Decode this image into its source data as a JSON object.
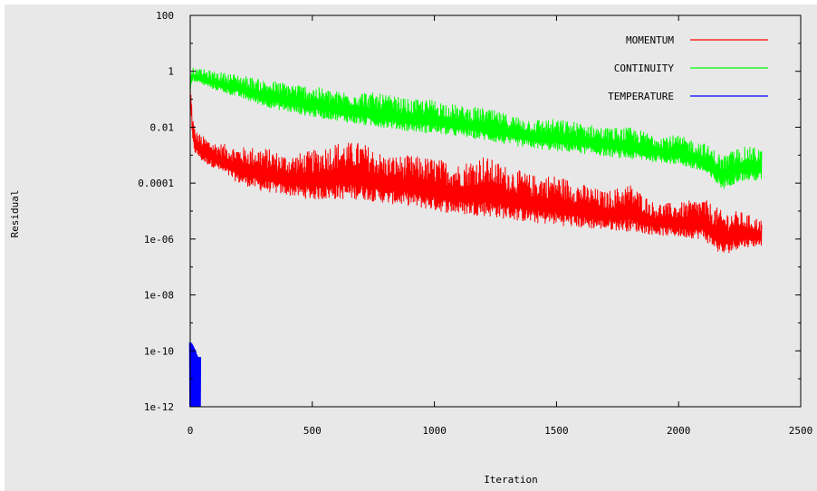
{
  "chart_data": {
    "type": "line",
    "title": "",
    "xlabel": "Iteration",
    "ylabel": "Residual",
    "xlim": [
      0,
      2500
    ],
    "ylim": [
      1e-12,
      100
    ],
    "y_scale": "log",
    "grid": false,
    "legend_position": "top-right",
    "x_ticks": [
      0,
      500,
      1000,
      1500,
      2000,
      2500
    ],
    "x_tick_labels": [
      "0",
      "500",
      "1000",
      "1500",
      "2000",
      "2500"
    ],
    "y_ticks": [
      1e-12,
      1e-10,
      1e-08,
      1e-06,
      0.0001,
      0.01,
      1,
      100
    ],
    "y_tick_labels": [
      "1e-12",
      "1e-10",
      "1e-08",
      "1e-06",
      "0.0001",
      "0.01",
      "1",
      "100"
    ],
    "series": [
      {
        "name": "MOMENTUM",
        "color": "#ff0000",
        "x": [
          0,
          10,
          20,
          50,
          100,
          200,
          300,
          400,
          500,
          600,
          700,
          800,
          900,
          1000,
          1100,
          1200,
          1300,
          1400,
          1500,
          1600,
          1700,
          1800,
          1900,
          2000,
          2100,
          2180,
          2250,
          2340
        ],
        "upper": [
          0.5,
          0.03,
          0.008,
          0.005,
          0.003,
          0.002,
          0.002,
          0.001,
          0.0015,
          0.003,
          0.003,
          0.001,
          0.001,
          0.0008,
          0.0005,
          0.001,
          0.0004,
          0.0002,
          0.0002,
          0.0001,
          5e-05,
          0.0001,
          2e-05,
          2e-05,
          3e-05,
          1e-05,
          1e-05,
          5e-06
        ],
        "lower": [
          0.05,
          0.002,
          0.001,
          0.0005,
          0.0003,
          8e-05,
          4e-05,
          3e-05,
          2e-05,
          2e-05,
          2e-05,
          1.5e-05,
          1.2e-05,
          8e-06,
          6e-06,
          5e-06,
          4e-06,
          3e-06,
          2.5e-06,
          2e-06,
          1.8e-06,
          1.5e-06,
          1.2e-06,
          1e-06,
          8e-07,
          2e-07,
          4e-07,
          5e-07
        ]
      },
      {
        "name": "CONTINUITY",
        "color": "#00ff00",
        "x": [
          0,
          10,
          20,
          50,
          100,
          200,
          300,
          400,
          500,
          600,
          700,
          800,
          900,
          1000,
          1100,
          1200,
          1300,
          1400,
          1500,
          1600,
          1700,
          1800,
          1900,
          2000,
          2100,
          2180,
          2250,
          2340
        ],
        "upper": [
          1.0,
          1.5,
          1.2,
          1.2,
          1.0,
          0.8,
          0.5,
          0.4,
          0.3,
          0.2,
          0.2,
          0.15,
          0.1,
          0.1,
          0.06,
          0.05,
          0.03,
          0.02,
          0.02,
          0.015,
          0.01,
          0.01,
          0.006,
          0.005,
          0.003,
          0.001,
          0.002,
          0.002
        ],
        "lower": [
          0.15,
          0.4,
          0.4,
          0.3,
          0.2,
          0.1,
          0.05,
          0.03,
          0.02,
          0.015,
          0.01,
          0.008,
          0.006,
          0.005,
          0.004,
          0.003,
          0.002,
          0.0015,
          0.0012,
          0.001,
          0.0008,
          0.0006,
          0.0005,
          0.0004,
          0.0002,
          5e-05,
          0.0001,
          0.0001
        ]
      },
      {
        "name": "TEMPERATURE",
        "color": "#0000ff",
        "x": [
          0,
          5,
          10,
          15,
          20,
          25,
          30,
          35,
          40
        ],
        "upper": [
          2e-10,
          1.8e-10,
          1.5e-10,
          1.2e-10,
          1e-10,
          7e-11,
          6e-11,
          6e-11,
          6e-11
        ],
        "lower": [
          1e-12,
          1e-12,
          1e-12,
          1e-12,
          1e-12,
          1e-12,
          1e-12,
          1e-12,
          1e-12
        ]
      }
    ]
  }
}
